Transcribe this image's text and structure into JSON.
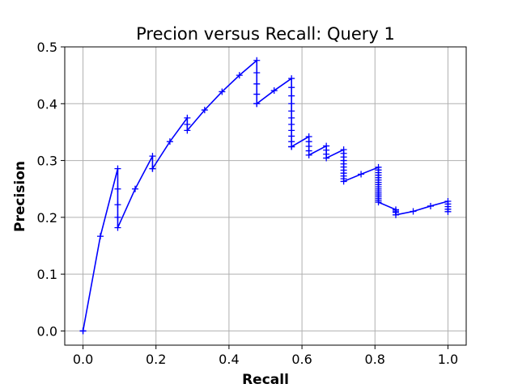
{
  "chart_data": {
    "type": "line",
    "title": "Precion versus Recall: Query 1",
    "xlabel": "Recall",
    "ylabel": "Precision",
    "xlim": [
      -0.05,
      1.05
    ],
    "ylim": [
      -0.025,
      0.5
    ],
    "xticks": [
      0.0,
      0.2,
      0.4,
      0.6,
      0.8,
      1.0
    ],
    "xtick_labels": [
      "0.0",
      "0.2",
      "0.4",
      "0.6",
      "0.8",
      "1.0"
    ],
    "yticks": [
      0.0,
      0.1,
      0.2,
      0.3,
      0.4,
      0.5
    ],
    "ytick_labels": [
      "0.0",
      "0.1",
      "0.2",
      "0.3",
      "0.4",
      "0.5"
    ],
    "grid": true,
    "color": "#0000ff",
    "marker": "+",
    "series": [
      {
        "x": [
          0.0,
          0.0,
          0.0476,
          0.0952,
          0.0952,
          0.0952,
          0.0952,
          0.0952,
          0.1429,
          0.1905,
          0.1905,
          0.1905,
          0.2381,
          0.2857,
          0.2857,
          0.2857,
          0.3333,
          0.381,
          0.4286,
          0.4762,
          0.4762,
          0.4762,
          0.4762,
          0.4762,
          0.4762,
          0.4762,
          0.5238,
          0.5714,
          0.5714,
          0.5714,
          0.5714,
          0.5714,
          0.5714,
          0.5714,
          0.5714,
          0.5714,
          0.5714,
          0.5714,
          0.5714,
          0.5714,
          0.619,
          0.619,
          0.619,
          0.619,
          0.619,
          0.6667,
          0.6667,
          0.6667,
          0.6667,
          0.7143,
          0.7143,
          0.7143,
          0.7143,
          0.7143,
          0.7143,
          0.7143,
          0.7143,
          0.7143,
          0.7143,
          0.7143,
          0.7619,
          0.8095,
          0.8095,
          0.8095,
          0.8095,
          0.8095,
          0.8095,
          0.8095,
          0.8095,
          0.8095,
          0.8095,
          0.8095,
          0.8095,
          0.8095,
          0.8095,
          0.8095,
          0.8095,
          0.8095,
          0.8571,
          0.8571,
          0.8571,
          0.8571,
          0.9048,
          0.9524,
          1.0,
          1.0,
          1.0,
          1.0,
          1.0
        ],
        "y": [
          0.0,
          0.0,
          0.1667,
          0.2857,
          0.25,
          0.2222,
          0.2,
          0.1818,
          0.25,
          0.3077,
          0.2857,
          0.2857,
          0.3333,
          0.375,
          0.3636,
          0.3529,
          0.3889,
          0.4211,
          0.45,
          0.4762,
          0.4545,
          0.4348,
          0.4167,
          0.4,
          0.4,
          0.4,
          0.4231,
          0.4444,
          0.4286,
          0.4138,
          0.4,
          0.3871,
          0.375,
          0.3636,
          0.3529,
          0.3429,
          0.3333,
          0.3243,
          0.3243,
          0.3243,
          0.3421,
          0.3333,
          0.325,
          0.3171,
          0.3095,
          0.3256,
          0.3182,
          0.3111,
          0.3043,
          0.3191,
          0.3125,
          0.3061,
          0.3,
          0.2941,
          0.2885,
          0.283,
          0.2778,
          0.2727,
          0.2679,
          0.2632,
          0.2759,
          0.2881,
          0.2833,
          0.2787,
          0.2742,
          0.2698,
          0.2656,
          0.2615,
          0.2576,
          0.2537,
          0.25,
          0.2464,
          0.2429,
          0.2394,
          0.2361,
          0.2329,
          0.2297,
          0.2267,
          0.2135,
          0.2111,
          0.2088,
          0.2043,
          0.2105,
          0.2198,
          0.2283,
          0.2234,
          0.2188,
          0.2143,
          0.21
        ]
      }
    ]
  }
}
